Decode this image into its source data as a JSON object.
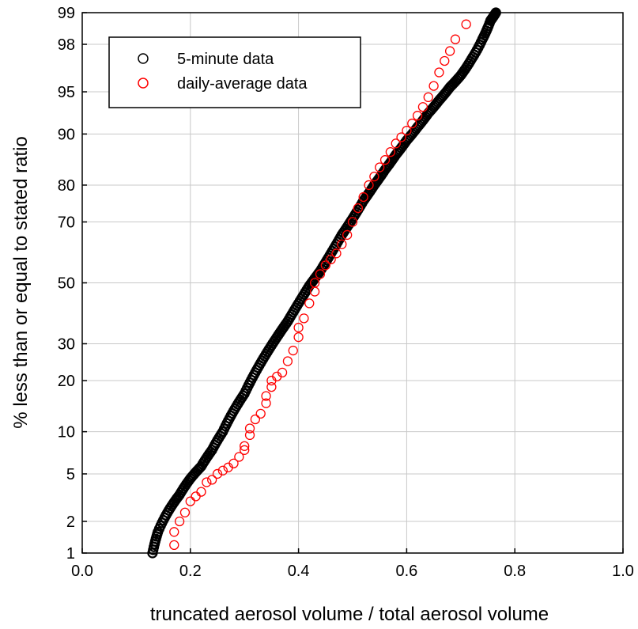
{
  "chart_data": {
    "type": "scatter",
    "title": "",
    "xlabel": "truncated aerosol volume / total aerosol volume",
    "ylabel": "% less than or equal to stated ratio",
    "xlim": [
      0.0,
      1.0
    ],
    "ylim": [
      1,
      99
    ],
    "y_scale": "probability",
    "x_ticks": [
      "0.0",
      "0.2",
      "0.4",
      "0.6",
      "0.8",
      "1.0"
    ],
    "y_ticks": [
      "1",
      "2",
      "5",
      "10",
      "20",
      "30",
      "50",
      "70",
      "80",
      "90",
      "95",
      "98",
      "99"
    ],
    "grid": true,
    "legend_position": "top-left",
    "series": [
      {
        "name": "5-minute data",
        "color": "#000000",
        "marker": "open-circle",
        "points": [
          [
            0.13,
            1
          ],
          [
            0.14,
            1.6
          ],
          [
            0.16,
            2.5
          ],
          [
            0.18,
            3.4
          ],
          [
            0.2,
            4.6
          ],
          [
            0.22,
            5.7
          ],
          [
            0.24,
            7.5
          ],
          [
            0.26,
            10
          ],
          [
            0.28,
            13.5
          ],
          [
            0.3,
            17
          ],
          [
            0.32,
            22
          ],
          [
            0.34,
            27
          ],
          [
            0.36,
            32
          ],
          [
            0.38,
            37
          ],
          [
            0.4,
            43
          ],
          [
            0.42,
            49
          ],
          [
            0.44,
            54
          ],
          [
            0.46,
            60
          ],
          [
            0.48,
            66
          ],
          [
            0.5,
            71
          ],
          [
            0.52,
            76
          ],
          [
            0.54,
            80
          ],
          [
            0.56,
            83.5
          ],
          [
            0.58,
            86.5
          ],
          [
            0.6,
            89
          ],
          [
            0.62,
            91
          ],
          [
            0.64,
            92.8
          ],
          [
            0.66,
            94.2
          ],
          [
            0.68,
            95.4
          ],
          [
            0.7,
            96.3
          ],
          [
            0.72,
            97.3
          ],
          [
            0.74,
            98.2
          ],
          [
            0.755,
            98.8
          ],
          [
            0.765,
            99
          ]
        ]
      },
      {
        "name": "daily-average data",
        "color": "#ff0000",
        "marker": "open-circle",
        "points": [
          [
            0.17,
            1.2
          ],
          [
            0.17,
            1.6
          ],
          [
            0.18,
            2
          ],
          [
            0.19,
            2.4
          ],
          [
            0.2,
            3
          ],
          [
            0.21,
            3.3
          ],
          [
            0.22,
            3.6
          ],
          [
            0.23,
            4.3
          ],
          [
            0.24,
            4.5
          ],
          [
            0.25,
            5
          ],
          [
            0.26,
            5.3
          ],
          [
            0.27,
            5.6
          ],
          [
            0.28,
            6
          ],
          [
            0.29,
            6.7
          ],
          [
            0.3,
            7.5
          ],
          [
            0.3,
            8
          ],
          [
            0.31,
            9.5
          ],
          [
            0.31,
            10.5
          ],
          [
            0.32,
            12
          ],
          [
            0.33,
            13
          ],
          [
            0.34,
            15
          ],
          [
            0.34,
            16.5
          ],
          [
            0.35,
            18.5
          ],
          [
            0.35,
            20
          ],
          [
            0.36,
            21
          ],
          [
            0.37,
            22
          ],
          [
            0.38,
            25
          ],
          [
            0.39,
            28
          ],
          [
            0.4,
            32
          ],
          [
            0.4,
            35
          ],
          [
            0.41,
            38
          ],
          [
            0.42,
            43
          ],
          [
            0.43,
            47
          ],
          [
            0.43,
            50
          ],
          [
            0.44,
            53
          ],
          [
            0.45,
            56
          ],
          [
            0.46,
            58
          ],
          [
            0.47,
            60
          ],
          [
            0.48,
            63
          ],
          [
            0.49,
            66
          ],
          [
            0.5,
            70
          ],
          [
            0.51,
            74
          ],
          [
            0.52,
            77
          ],
          [
            0.53,
            80
          ],
          [
            0.54,
            82
          ],
          [
            0.55,
            84
          ],
          [
            0.56,
            85.5
          ],
          [
            0.57,
            87
          ],
          [
            0.58,
            88.5
          ],
          [
            0.59,
            89.5
          ],
          [
            0.6,
            90.5
          ],
          [
            0.61,
            91.5
          ],
          [
            0.62,
            92.5
          ],
          [
            0.63,
            93.5
          ],
          [
            0.64,
            94.5
          ],
          [
            0.65,
            95.5
          ],
          [
            0.66,
            96.5
          ],
          [
            0.67,
            97.2
          ],
          [
            0.68,
            97.7
          ],
          [
            0.69,
            98.2
          ],
          [
            0.71,
            98.7
          ]
        ]
      }
    ]
  }
}
